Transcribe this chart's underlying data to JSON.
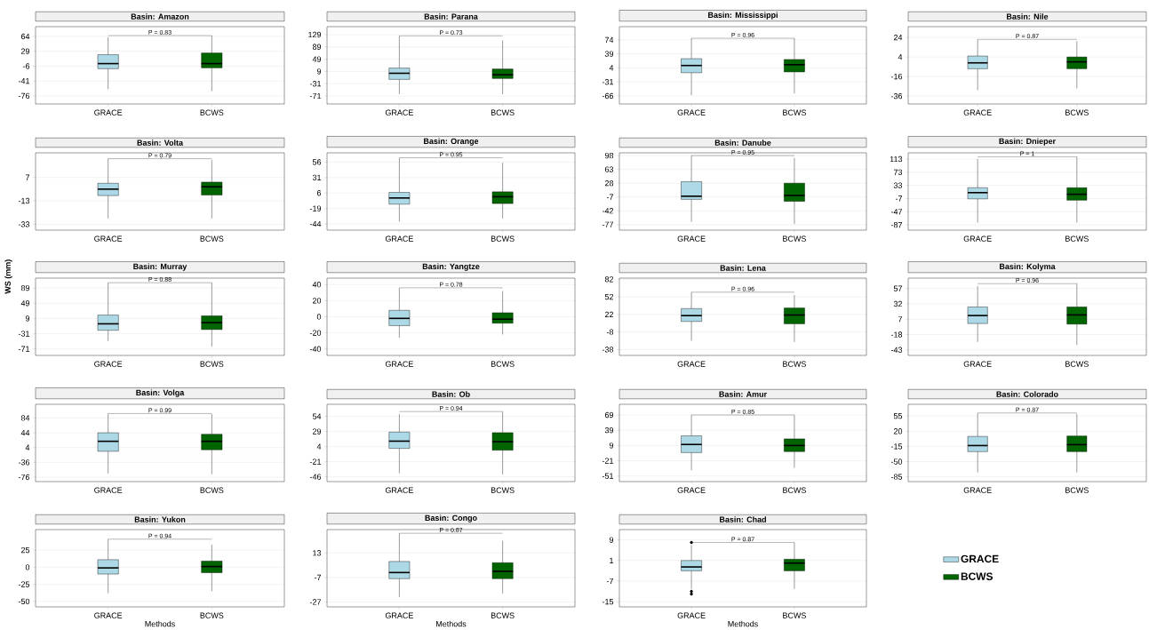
{
  "chart_data": [
    {
      "type": "box",
      "title": "Basin: Amazon",
      "categories": [
        "GRACE",
        "BCWS"
      ],
      "ylim": [
        -95,
        87
      ],
      "yticks": [
        -76,
        -41,
        -6,
        29,
        64
      ],
      "grid": "y",
      "annotations": [
        "P = 0.83"
      ],
      "series": [
        {
          "color": "#add8e6",
          "boxes": [
            {
              "low": -60,
              "q1": -12,
              "median": 0,
              "q3": 21,
              "high": 62
            },
            null
          ]
        },
        {
          "color": "#006400",
          "boxes": [
            null,
            {
              "low": -65,
              "q1": -10,
              "median": 0,
              "q3": 25,
              "high": 66
            }
          ]
        }
      ]
    },
    {
      "type": "box",
      "title": "Basin: Parana",
      "categories": [
        "GRACE",
        "BCWS"
      ],
      "ylim": [
        -97,
        155
      ],
      "yticks": [
        -71,
        -31,
        9,
        49,
        89,
        129
      ],
      "grid": "y",
      "annotations": [
        "P = 0.73"
      ],
      "series": [
        {
          "color": "#add8e6",
          "boxes": [
            {
              "low": -65,
              "q1": -17,
              "median": 3,
              "q3": 20,
              "high": 125
            },
            null
          ]
        },
        {
          "color": "#006400",
          "boxes": [
            null,
            {
              "low": -65,
              "q1": -14,
              "median": -2,
              "q3": 17,
              "high": 110
            }
          ]
        }
      ]
    },
    {
      "type": "box",
      "title": "Basin: Mississippi",
      "categories": [
        "GRACE",
        "BCWS"
      ],
      "ylim": [
        -86,
        107
      ],
      "yticks": [
        -66,
        -31,
        4,
        39,
        74
      ],
      "grid": "y",
      "annotations": [
        "P = 0.96"
      ],
      "series": [
        {
          "color": "#add8e6",
          "boxes": [
            {
              "low": -64,
              "q1": -8,
              "median": 10,
              "q3": 27,
              "high": 78
            },
            null
          ]
        },
        {
          "color": "#006400",
          "boxes": [
            null,
            {
              "low": -60,
              "q1": -6,
              "median": 12,
              "q3": 25,
              "high": 78
            }
          ]
        }
      ]
    },
    {
      "type": "box",
      "title": "Basin: Nile",
      "categories": [
        "GRACE",
        "BCWS"
      ],
      "ylim": [
        -44,
        35
      ],
      "yticks": [
        -36,
        -16,
        4,
        24
      ],
      "grid": "y",
      "annotations": [
        "P = 0.87"
      ],
      "series": [
        {
          "color": "#add8e6",
          "boxes": [
            {
              "low": -30,
              "q1": -8,
              "median": -2,
              "q3": 5,
              "high": 22
            },
            null
          ]
        },
        {
          "color": "#006400",
          "boxes": [
            null,
            {
              "low": -28,
              "q1": -8,
              "median": -1,
              "q3": 4,
              "high": 20
            }
          ]
        }
      ]
    },
    {
      "type": "box",
      "title": "Basin: Volta",
      "categories": [
        "GRACE",
        "BCWS"
      ],
      "ylim": [
        -38,
        28
      ],
      "yticks": [
        -33,
        -13,
        7
      ],
      "grid": "y",
      "annotations": [
        "P = 0.79"
      ],
      "series": [
        {
          "color": "#add8e6",
          "boxes": [
            {
              "low": -28,
              "q1": -8.5,
              "median": -3,
              "q3": 2,
              "high": 23
            },
            null
          ]
        },
        {
          "color": "#006400",
          "boxes": [
            null,
            {
              "low": -28,
              "q1": -8,
              "median": -1,
              "q3": 3,
              "high": 22
            }
          ]
        }
      ]
    },
    {
      "type": "box",
      "title": "Basin: Orange",
      "categories": [
        "GRACE",
        "BCWS"
      ],
      "ylim": [
        -54,
        71
      ],
      "yticks": [
        -44,
        -19,
        6,
        31,
        56
      ],
      "grid": "y",
      "annotations": [
        "P = 0.95"
      ],
      "series": [
        {
          "color": "#add8e6",
          "boxes": [
            {
              "low": -40,
              "q1": -12,
              "median": -2,
              "q3": 7,
              "high": 63
            },
            null
          ]
        },
        {
          "color": "#006400",
          "boxes": [
            null,
            {
              "low": -35,
              "q1": -11,
              "median": 0,
              "q3": 8,
              "high": 55
            }
          ]
        }
      ]
    },
    {
      "type": "box",
      "title": "Basin: Danube",
      "categories": [
        "GRACE",
        "BCWS"
      ],
      "ylim": [
        -91,
        105
      ],
      "yticks": [
        -77,
        -42,
        -7,
        28,
        63,
        98
      ],
      "grid": "y",
      "annotations": [
        "P = 0.95"
      ],
      "series": [
        {
          "color": "#add8e6",
          "boxes": [
            {
              "low": -70,
              "q1": -13,
              "median": -5,
              "q3": 32,
              "high": 98
            },
            null
          ]
        },
        {
          "color": "#006400",
          "boxes": [
            null,
            {
              "low": -75,
              "q1": -18,
              "median": -3,
              "q3": 28,
              "high": 92
            }
          ]
        }
      ]
    },
    {
      "type": "box",
      "title": "Basin: Dnieper",
      "categories": [
        "GRACE",
        "BCWS"
      ],
      "ylim": [
        -103,
        132
      ],
      "yticks": [
        -87,
        -47,
        -7,
        33,
        73,
        113
      ],
      "grid": "y",
      "annotations": [
        "P = 1"
      ],
      "series": [
        {
          "color": "#add8e6",
          "boxes": [
            {
              "low": -80,
              "q1": -8,
              "median": 11,
              "q3": 26,
              "high": 113
            },
            null
          ]
        },
        {
          "color": "#006400",
          "boxes": [
            null,
            {
              "low": -80,
              "q1": -12,
              "median": 6,
              "q3": 26,
              "high": 120
            }
          ]
        }
      ]
    },
    {
      "type": "box",
      "title": "Basin: Murray",
      "ylabel": "WS (mm)",
      "categories": [
        "GRACE",
        "BCWS"
      ],
      "ylim": [
        -88,
        115
      ],
      "yticks": [
        -71,
        -31,
        9,
        49,
        89
      ],
      "grid": "y",
      "annotations": [
        "P = 0.88"
      ],
      "series": [
        {
          "color": "#add8e6",
          "boxes": [
            {
              "low": -50,
              "q1": -22,
              "median": -5,
              "q3": 18,
              "high": 103
            },
            null
          ]
        },
        {
          "color": "#006400",
          "boxes": [
            null,
            {
              "low": -65,
              "q1": -20,
              "median": -2,
              "q3": 16,
              "high": 103
            }
          ]
        }
      ]
    },
    {
      "type": "box",
      "title": "Basin: Yangtze",
      "categories": [
        "GRACE",
        "BCWS"
      ],
      "ylim": [
        -48,
        48
      ],
      "yticks": [
        -40,
        -20,
        0,
        20,
        40
      ],
      "grid": "y",
      "annotations": [
        "P = 0.78"
      ],
      "series": [
        {
          "color": "#add8e6",
          "boxes": [
            {
              "low": -26,
              "q1": -11,
              "median": -2,
              "q3": 8,
              "high": 36
            },
            null
          ]
        },
        {
          "color": "#006400",
          "boxes": [
            null,
            {
              "low": -22,
              "q1": -8,
              "median": -3,
              "q3": 5,
              "high": 32
            }
          ]
        }
      ]
    },
    {
      "type": "box",
      "title": "Basin: Lena",
      "categories": [
        "GRACE",
        "BCWS"
      ],
      "ylim": [
        -48,
        84
      ],
      "yticks": [
        -38,
        -8,
        22,
        52,
        82
      ],
      "grid": "y",
      "annotations": [
        "P = 0.96"
      ],
      "series": [
        {
          "color": "#add8e6",
          "boxes": [
            {
              "low": -23,
              "q1": 10,
              "median": 20,
              "q3": 32,
              "high": 60
            },
            null
          ]
        },
        {
          "color": "#006400",
          "boxes": [
            null,
            {
              "low": -25,
              "q1": 6,
              "median": 21,
              "q3": 33,
              "high": 55
            }
          ]
        }
      ]
    },
    {
      "type": "box",
      "title": "Basin: Kolyma",
      "categories": [
        "GRACE",
        "BCWS"
      ],
      "ylim": [
        -52,
        74
      ],
      "yticks": [
        -43,
        -18,
        7,
        32,
        57
      ],
      "grid": "y",
      "annotations": [
        "P = 0.96"
      ],
      "series": [
        {
          "color": "#add8e6",
          "boxes": [
            {
              "low": -30,
              "q1": 0,
              "median": 13,
              "q3": 27,
              "high": 61
            },
            null
          ]
        },
        {
          "color": "#006400",
          "boxes": [
            null,
            {
              "low": -35,
              "q1": -1,
              "median": 14,
              "q3": 27,
              "high": 65
            }
          ]
        }
      ]
    },
    {
      "type": "box",
      "title": "Basin: Volga",
      "categories": [
        "GRACE",
        "BCWS"
      ],
      "ylim": [
        -88,
        121
      ],
      "yticks": [
        -76,
        -36,
        4,
        44,
        84
      ],
      "grid": "y",
      "annotations": [
        "P = 0.99"
      ],
      "series": [
        {
          "color": "#add8e6",
          "boxes": [
            {
              "low": -66,
              "q1": -6,
              "median": 21,
              "q3": 44,
              "high": 96
            },
            null
          ]
        },
        {
          "color": "#006400",
          "boxes": [
            null,
            {
              "low": -68,
              "q1": -2,
              "median": 21,
              "q3": 40,
              "high": 95
            }
          ]
        }
      ]
    },
    {
      "type": "box",
      "title": "Basin: Ob",
      "categories": [
        "GRACE",
        "BCWS"
      ],
      "ylim": [
        -54,
        74
      ],
      "yticks": [
        -46,
        -21,
        4,
        29,
        54
      ],
      "grid": "y",
      "annotations": [
        "P = 0.94"
      ],
      "series": [
        {
          "color": "#add8e6",
          "boxes": [
            {
              "low": -40,
              "q1": 1,
              "median": 13,
              "q3": 28,
              "high": 58
            },
            null
          ]
        },
        {
          "color": "#006400",
          "boxes": [
            null,
            {
              "low": -42,
              "q1": -2,
              "median": 12,
              "q3": 27,
              "high": 62
            }
          ]
        }
      ]
    },
    {
      "type": "box",
      "title": "Basin: Amur",
      "categories": [
        "GRACE",
        "BCWS"
      ],
      "ylim": [
        -62,
        90
      ],
      "yticks": [
        -51,
        -21,
        9,
        39,
        69
      ],
      "grid": "y",
      "annotations": [
        "P = 0.85"
      ],
      "series": [
        {
          "color": "#add8e6",
          "boxes": [
            {
              "low": -40,
              "q1": -5,
              "median": 11,
              "q3": 28,
              "high": 69
            },
            null
          ]
        },
        {
          "color": "#006400",
          "boxes": [
            null,
            {
              "low": -35,
              "q1": -3,
              "median": 9,
              "q3": 22,
              "high": 69
            }
          ]
        }
      ]
    },
    {
      "type": "box",
      "title": "Basin: Colorado",
      "categories": [
        "GRACE",
        "BCWS"
      ],
      "ylim": [
        -96,
        82
      ],
      "yticks": [
        -85,
        -50,
        -15,
        20,
        55
      ],
      "grid": "y",
      "annotations": [
        "P = 0.87"
      ],
      "series": [
        {
          "color": "#add8e6",
          "boxes": [
            {
              "low": -75,
              "q1": -27,
              "median": -13,
              "q3": 8,
              "high": 62
            },
            null
          ]
        },
        {
          "color": "#006400",
          "boxes": [
            null,
            {
              "low": -75,
              "q1": -27,
              "median": -11,
              "q3": 9,
              "high": 60
            }
          ]
        }
      ]
    },
    {
      "type": "box",
      "title": "Basin: Yukon",
      "xlabel": "Methods",
      "categories": [
        "GRACE",
        "BCWS"
      ],
      "ylim": [
        -58,
        55
      ],
      "yticks": [
        -50,
        -25,
        0,
        25
      ],
      "grid": "y",
      "annotations": [
        "P = 0.94"
      ],
      "series": [
        {
          "color": "#add8e6",
          "boxes": [
            {
              "low": -38,
              "q1": -10,
              "median": -1,
              "q3": 11,
              "high": 41
            },
            null
          ]
        },
        {
          "color": "#006400",
          "boxes": [
            null,
            {
              "low": -35,
              "q1": -8,
              "median": 1,
              "q3": 9,
              "high": 33
            }
          ]
        }
      ]
    },
    {
      "type": "box",
      "title": "Basin: Congo",
      "xlabel": "Methods",
      "categories": [
        "GRACE",
        "BCWS"
      ],
      "ylim": [
        -31,
        32
      ],
      "yticks": [
        -27,
        -7,
        13
      ],
      "grid": "y",
      "annotations": [
        "P = 0.87"
      ],
      "series": [
        {
          "color": "#add8e6",
          "boxes": [
            {
              "low": -23,
              "q1": -8,
              "median": -3,
              "q3": 6,
              "high": 29
            },
            null
          ]
        },
        {
          "color": "#006400",
          "boxes": [
            null,
            {
              "low": -20,
              "q1": -8,
              "median": -2,
              "q3": 5,
              "high": 23
            }
          ]
        }
      ]
    },
    {
      "type": "box",
      "title": "Basin: Chad",
      "xlabel": "Methods",
      "categories": [
        "GRACE",
        "BCWS"
      ],
      "ylim": [
        -17,
        13
      ],
      "yticks": [
        -15,
        -7,
        1,
        9
      ],
      "grid": "y",
      "annotations": [
        "P = 0.87"
      ],
      "legend": "right",
      "series": [
        {
          "name": "GRACE",
          "color": "#add8e6",
          "boxes": [
            {
              "low": -10,
              "q1": -3,
              "median": -1.5,
              "q3": 1,
              "high": 7,
              "outliers": [
                8,
                -11,
                -12
              ]
            },
            null
          ]
        },
        {
          "name": "BCWS",
          "color": "#006400",
          "boxes": [
            null,
            {
              "low": -10,
              "q1": -3,
              "median": 0,
              "q3": 1.5,
              "high": 8
            }
          ]
        }
      ]
    }
  ]
}
